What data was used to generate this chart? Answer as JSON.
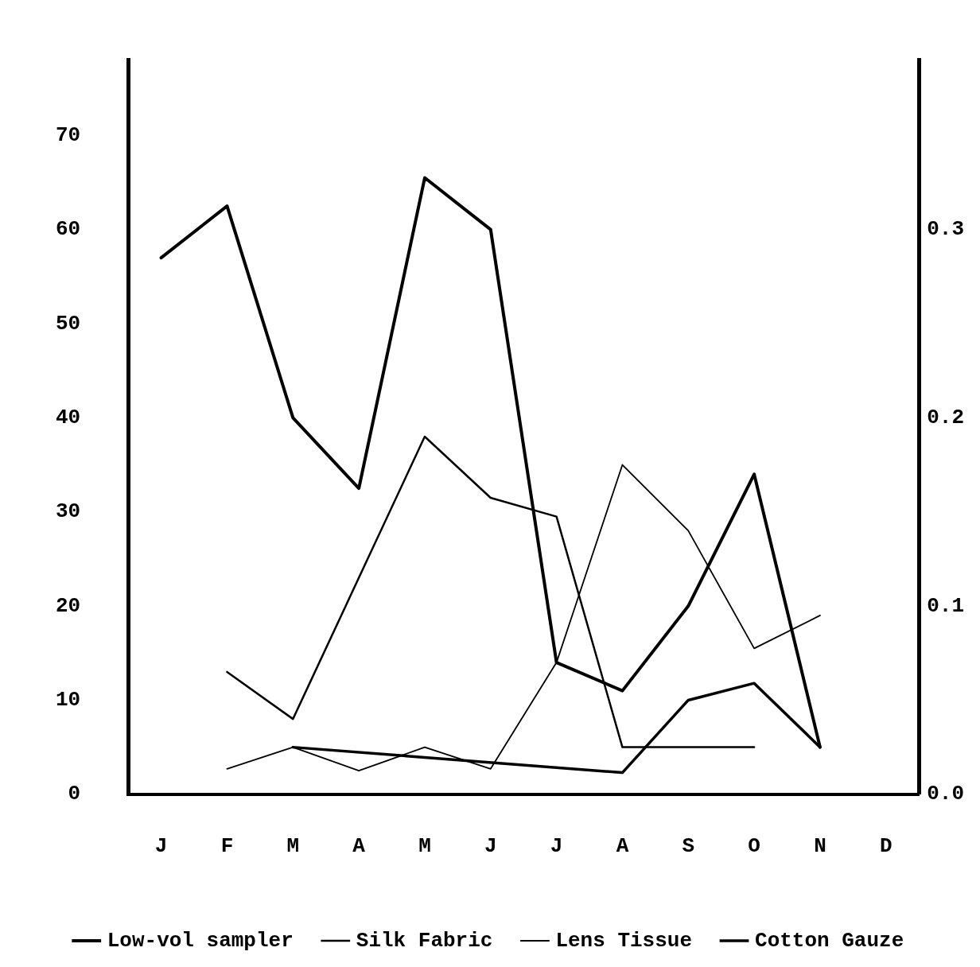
{
  "chart_data": {
    "type": "line",
    "categories": [
      "J",
      "F",
      "M",
      "A",
      "M",
      "J",
      "J",
      "A",
      "S",
      "O",
      "N",
      "D"
    ],
    "series": [
      {
        "name": "Low-vol sampler",
        "color": "#000000",
        "values": [
          57,
          62.5,
          40,
          32.5,
          65.5,
          60,
          14,
          11,
          20,
          34,
          5,
          null
        ]
      },
      {
        "name": "Silk Fabric",
        "color": "#000000",
        "values": [
          null,
          13,
          8,
          23,
          38,
          31.5,
          29.5,
          5,
          5,
          5,
          null,
          null
        ]
      },
      {
        "name": "Lens Tissue",
        "color": "#000000",
        "values": [
          null,
          2.7,
          5,
          2.5,
          5,
          2.7,
          14,
          35,
          28,
          15.5,
          19,
          null
        ]
      },
      {
        "name": "Cotton Gauze",
        "color": "#000000",
        "values": [
          null,
          null,
          5,
          null,
          null,
          null,
          null,
          2.3,
          10,
          11.8,
          5,
          null
        ]
      }
    ],
    "ylim": [
      0,
      78
    ],
    "yticks": [
      0,
      10,
      20,
      30,
      40,
      50,
      60,
      70
    ],
    "y2lim": [
      0,
      0.39
    ],
    "y2ticks": [
      {
        "value": 0,
        "label": "0.0"
      },
      0.1,
      0.2,
      0.3
    ],
    "legend": "bottom",
    "grid": false,
    "marker": "none",
    "line_style": "solid"
  }
}
